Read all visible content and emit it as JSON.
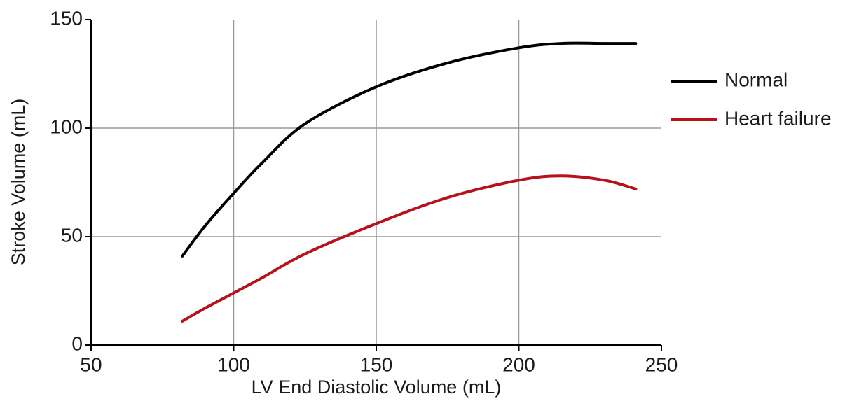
{
  "chart_data": {
    "type": "line",
    "x_label": "LV End Diastolic Volume (mL)",
    "y_label": "Stroke Volume (mL)",
    "x": [
      82,
      90,
      100,
      110,
      125,
      150,
      175,
      200,
      215,
      230,
      241
    ],
    "series": [
      {
        "name": "Normal",
        "color": "#000000",
        "values": [
          41,
          55,
          70,
          84,
          102,
          119,
          130,
          137,
          139,
          139,
          139
        ]
      },
      {
        "name": "Heart failure",
        "color": "#b5121b",
        "values": [
          11,
          17,
          24,
          31,
          42,
          56,
          68,
          76,
          78,
          76,
          72
        ]
      }
    ],
    "xlim": [
      50,
      250
    ],
    "xticks": [
      50,
      100,
      150,
      200,
      250
    ],
    "ylim": [
      0,
      150
    ],
    "yticks": [
      0,
      50,
      100,
      150
    ],
    "grid": true,
    "legend": "right"
  }
}
